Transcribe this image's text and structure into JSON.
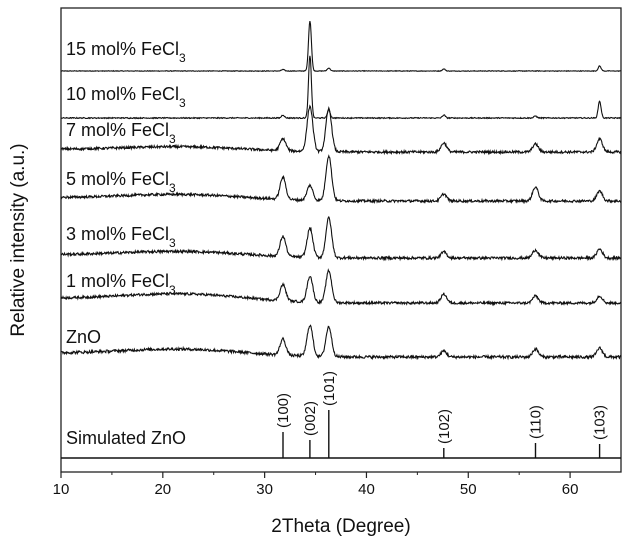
{
  "chart_data": {
    "type": "line",
    "title": "",
    "xlabel": "2Theta (Degree)",
    "ylabel": "Relative intensity (a.u.)",
    "xlim": [
      10,
      65
    ],
    "x_ticks": [
      "10",
      "20",
      "30",
      "40",
      "50",
      "60"
    ],
    "y_ticks": "none",
    "grid": false,
    "legend": "inline labels above each trace",
    "series": [
      {
        "name": "15 mol% FeCl",
        "subscript": "3",
        "baseline_noise": 0.3,
        "background_hump": 0,
        "peaks": [
          [
            31.8,
            1.5
          ],
          [
            34.45,
            50
          ],
          [
            36.3,
            3
          ],
          [
            47.6,
            2
          ],
          [
            62.9,
            5
          ]
        ]
      },
      {
        "name": "10 mol% FeCl",
        "subscript": "3",
        "baseline_noise": 0.5,
        "background_hump": 0,
        "peaks": [
          [
            31.8,
            3
          ],
          [
            34.45,
            62
          ],
          [
            36.3,
            8
          ],
          [
            47.6,
            3
          ],
          [
            56.6,
            2
          ],
          [
            62.9,
            17
          ]
        ]
      },
      {
        "name": "7 mol% FeCl",
        "subscript": "3",
        "baseline_noise": 1.2,
        "background_hump": 4,
        "peaks": [
          [
            31.8,
            12
          ],
          [
            34.45,
            45
          ],
          [
            36.3,
            43
          ],
          [
            47.6,
            9
          ],
          [
            56.6,
            8
          ],
          [
            62.9,
            13
          ]
        ]
      },
      {
        "name": "5 mol% FeCl",
        "subscript": "3",
        "baseline_noise": 1.2,
        "background_hump": 5,
        "peaks": [
          [
            31.8,
            22
          ],
          [
            34.45,
            15
          ],
          [
            36.3,
            45
          ],
          [
            47.6,
            7
          ],
          [
            56.6,
            14
          ],
          [
            62.9,
            10
          ]
        ]
      },
      {
        "name": "3 mol% FeCl",
        "subscript": "3",
        "baseline_noise": 1.3,
        "background_hump": 5,
        "peaks": [
          [
            31.8,
            20
          ],
          [
            34.45,
            29
          ],
          [
            36.3,
            40
          ],
          [
            47.6,
            6
          ],
          [
            56.6,
            8
          ],
          [
            62.9,
            9
          ]
        ]
      },
      {
        "name": "1 mol% FeCl",
        "subscript": "3",
        "baseline_noise": 1.2,
        "background_hump": 7,
        "peaks": [
          [
            31.8,
            16
          ],
          [
            34.45,
            26
          ],
          [
            36.3,
            32
          ],
          [
            47.6,
            9
          ],
          [
            56.6,
            7
          ],
          [
            62.9,
            7
          ]
        ]
      },
      {
        "name": "ZnO",
        "subscript": "",
        "baseline_noise": 1.4,
        "background_hump": 6,
        "peaks": [
          [
            31.8,
            16
          ],
          [
            34.45,
            31
          ],
          [
            36.3,
            30
          ],
          [
            47.6,
            6
          ],
          [
            56.6,
            8
          ],
          [
            62.9,
            9
          ]
        ]
      },
      {
        "name": "Simulated ZnO",
        "subscript": "",
        "baseline_noise": 0,
        "background_hump": 0,
        "peaks": [
          [
            31.8,
            26
          ],
          [
            34.45,
            18
          ],
          [
            36.3,
            48
          ],
          [
            47.6,
            10
          ],
          [
            56.6,
            15
          ],
          [
            62.9,
            14
          ]
        ]
      }
    ],
    "reflections": [
      {
        "hkl": "(100)",
        "x": 31.8
      },
      {
        "hkl": "(002)",
        "x": 34.45
      },
      {
        "hkl": "(101)",
        "x": 36.3
      },
      {
        "hkl": "(102)",
        "x": 47.6
      },
      {
        "hkl": "(110)",
        "x": 56.6
      },
      {
        "hkl": "(103)",
        "x": 62.9
      }
    ]
  }
}
